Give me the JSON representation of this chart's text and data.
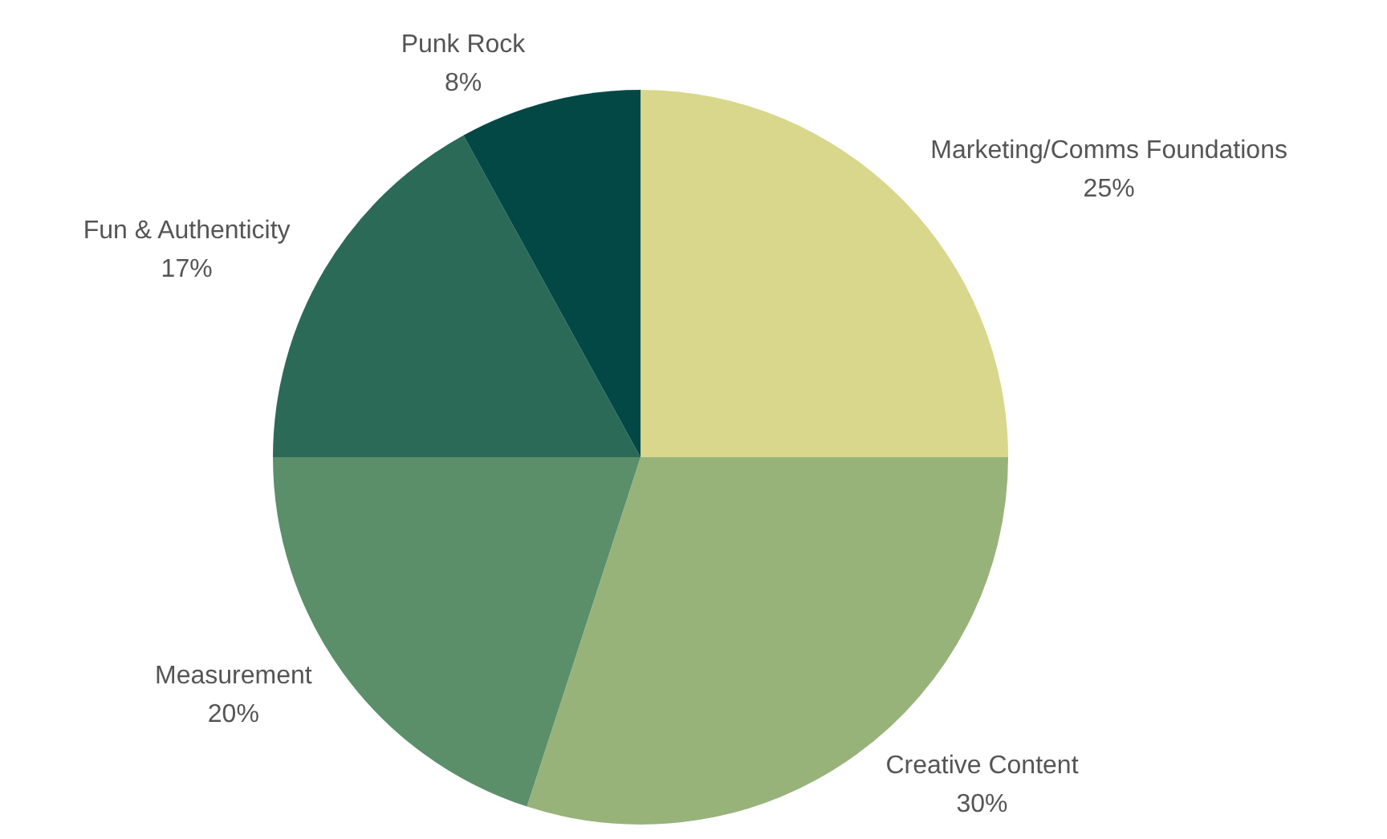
{
  "chart_data": {
    "type": "pie",
    "categories": [
      "Marketing/Comms Foundations",
      "Creative Content",
      "Measurement",
      "Fun & Authenticity",
      "Punk Rock"
    ],
    "values": [
      25,
      30,
      20,
      17,
      8
    ],
    "colors": [
      "#d8d78c",
      "#97b37a",
      "#5a8f6a",
      "#2c6a58",
      "#034845"
    ],
    "value_labels": [
      "25%",
      "30%",
      "20%",
      "17%",
      "8%"
    ],
    "legend": false
  }
}
